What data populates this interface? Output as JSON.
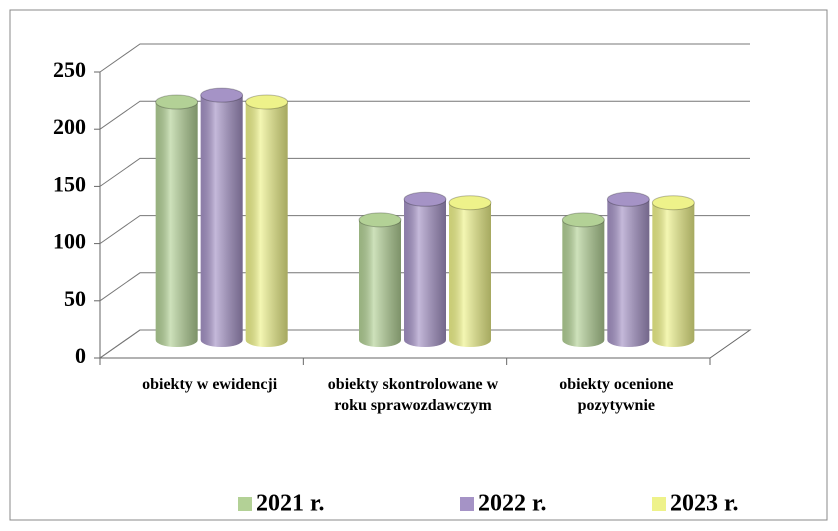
{
  "chart_data": {
    "type": "bar3d",
    "categories": [
      "obiekty w ewidencji",
      "obiekty skontrolowane w roku sprawozdawczym",
      "obiekty ocenione pozytywnie"
    ],
    "series": [
      {
        "name": "2021 r.",
        "color": "#b3d196",
        "values": [
          208,
          105,
          105
        ]
      },
      {
        "name": "2022 r.",
        "color": "#a593c6",
        "values": [
          214,
          123,
          123
        ]
      },
      {
        "name": "2023 r.",
        "color": "#eef28a",
        "values": [
          208,
          120,
          120
        ]
      }
    ],
    "ylim": [
      0,
      250
    ],
    "yticks": [
      0,
      50,
      100,
      150,
      200,
      250
    ],
    "grid": true,
    "legend": "bottom"
  }
}
